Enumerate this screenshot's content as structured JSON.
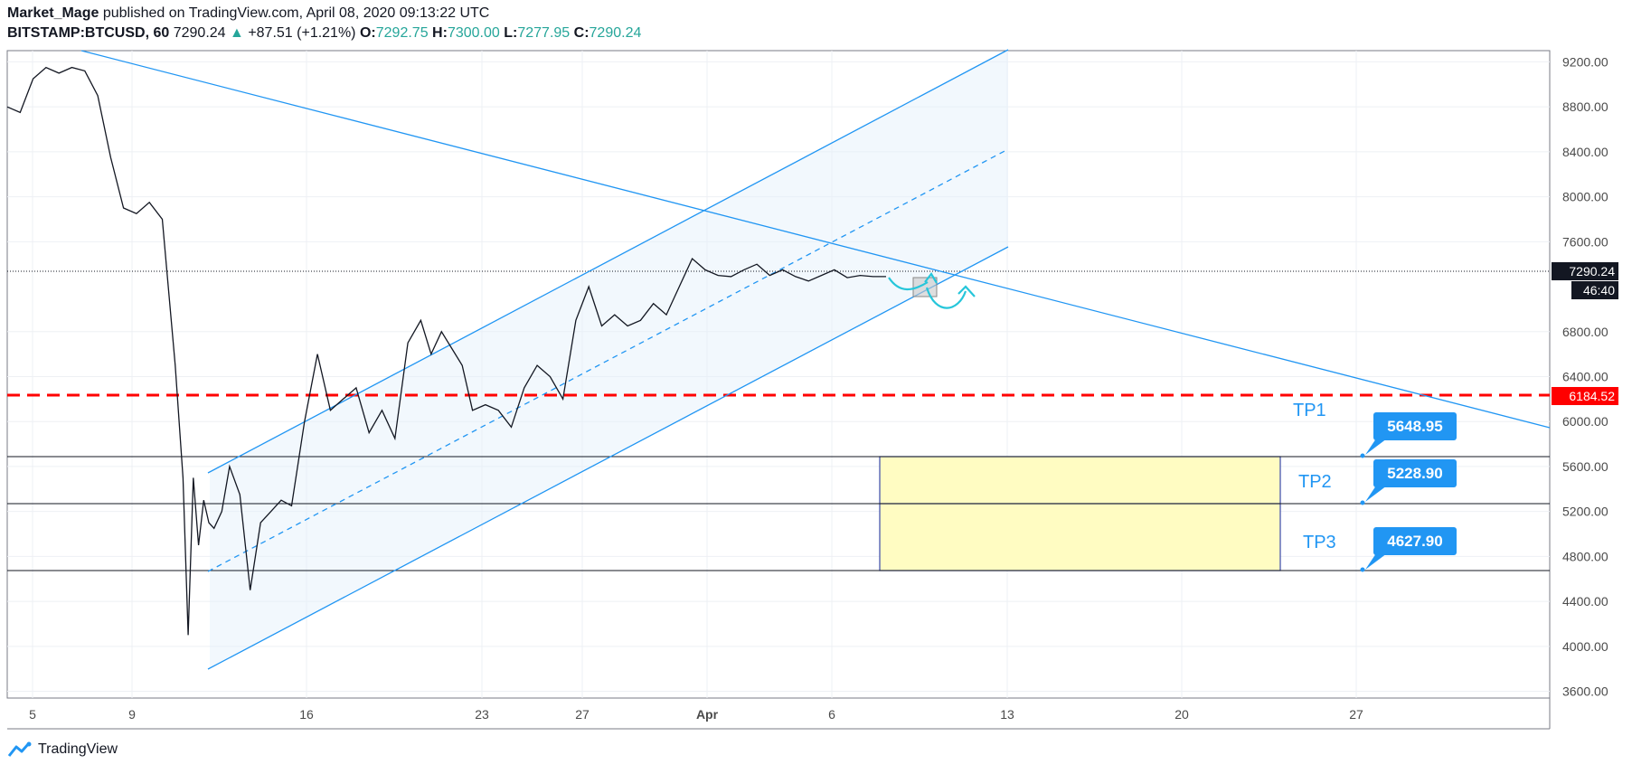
{
  "header": {
    "author": "Market_Mage",
    "published_text": "published on TradingView.com, April 08, 2020 09:13:22 UTC",
    "symbol": "BITSTAMP:BTCUSD, 60",
    "last": "7290.24",
    "change_arrow": "▲",
    "change": "+87.51 (+1.21%)",
    "open_label": "O:",
    "open": "7292.75",
    "high_label": "H:",
    "high": "7300.00",
    "low_label": "L:",
    "low": "7277.95",
    "close_label": "C:",
    "close": "7290.24"
  },
  "footer": {
    "brand": "TradingView",
    "logo_icon": "tradingview-logo-icon"
  },
  "colors": {
    "up": "#26a69a",
    "line": "#2196f3",
    "red": "#ff0000",
    "box": "#fffcc2",
    "label_bg": "#2196f3"
  },
  "chart_data": {
    "type": "line",
    "x_ticks": [
      "5",
      "9",
      "16",
      "23",
      "27",
      "Apr",
      "6",
      "13",
      "20",
      "27"
    ],
    "y_ticks": [
      "9200.00",
      "8800.00",
      "8400.00",
      "8000.00",
      "7600.00",
      "6800.00",
      "6400.00",
      "6000.00",
      "5600.00",
      "5200.00",
      "4800.00",
      "4400.00",
      "4000.00",
      "3600.00"
    ],
    "ylim": [
      3540,
      9300
    ],
    "y_tick_values": [
      9200,
      8800,
      8400,
      8000,
      7600,
      6800,
      6400,
      6000,
      5600,
      5200,
      4800,
      4400,
      4000,
      3600
    ],
    "price_series": {
      "x": [
        0,
        0.5,
        1,
        1.5,
        2,
        2.5,
        3,
        3.5,
        4,
        4.5,
        5,
        5.5,
        6,
        6.5,
        6.8,
        7,
        7.2,
        7.4,
        7.6,
        7.8,
        8,
        8.3,
        8.6,
        9,
        9.4,
        9.8,
        10.2,
        10.6,
        11,
        11.5,
        12,
        12.5,
        13,
        13.5,
        14,
        14.5,
        15,
        15.5,
        16,
        16.4,
        16.8,
        17.2,
        17.6,
        18,
        18.5,
        19,
        19.5,
        20,
        20.5,
        21,
        21.5,
        22,
        22.5,
        23,
        23.5,
        24,
        24.5,
        25,
        25.5,
        26,
        26.5,
        27,
        27.5,
        28,
        28.5,
        29,
        29.5,
        30,
        30.5,
        31,
        31.5,
        32,
        32.5,
        33,
        33.5,
        34
      ],
      "y": [
        8800,
        8750,
        9050,
        9150,
        9100,
        9150,
        9120,
        8900,
        8350,
        7900,
        7850,
        7950,
        7800,
        6500,
        5500,
        4100,
        5500,
        4900,
        5300,
        5100,
        5050,
        5200,
        5600,
        5350,
        4500,
        5100,
        5200,
        5300,
        5250,
        6000,
        6600,
        6100,
        6200,
        6300,
        5900,
        6100,
        5850,
        6700,
        6900,
        6600,
        6800,
        6650,
        6500,
        6100,
        6150,
        6100,
        5950,
        6300,
        6500,
        6400,
        6200,
        6900,
        7200,
        6850,
        6950,
        6850,
        6900,
        7050,
        6950,
        7200,
        7450,
        7350,
        7300,
        7290,
        7350,
        7400,
        7300,
        7350,
        7290,
        7250,
        7300,
        7350,
        7280,
        7300,
        7290,
        7290
      ]
    },
    "last_price_label": "7290.24",
    "countdown_label": "46:40",
    "red_level": 6184.52,
    "red_level_label": "6184.52",
    "targets": [
      {
        "name": "TP1",
        "value": 5648.95,
        "label": "5648.95"
      },
      {
        "name": "TP2",
        "value": 5228.9,
        "label": "5228.90"
      },
      {
        "name": "TP3",
        "value": 4627.9,
        "label": "4627.90"
      }
    ]
  }
}
